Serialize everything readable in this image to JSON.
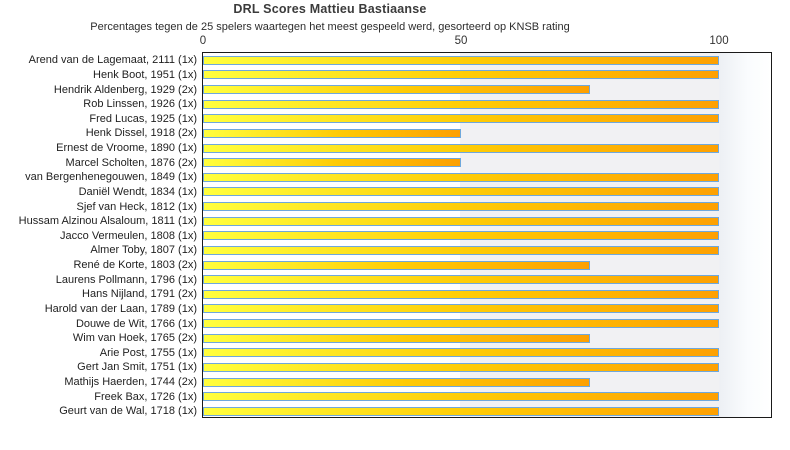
{
  "chart_data": {
    "type": "bar",
    "orientation": "horizontal",
    "title": "DRL Scores Mattieu Bastiaanse",
    "subtitle": "Percentages tegen de 25 spelers waartegen het meest gespeeld werd, gesorteerd op KNSB rating",
    "x_axis": {
      "position": "top",
      "ticks": [
        0,
        50,
        100
      ],
      "range": [
        0,
        110
      ],
      "grid_band": "alternating 50-unit bands"
    },
    "categories": [
      "Arend van de Lagemaat, 2111 (1x)",
      "Henk Boot, 1951 (1x)",
      "Hendrik Aldenberg, 1929 (2x)",
      "Rob Linssen, 1926 (1x)",
      "Fred Lucas, 1925 (1x)",
      "Henk Dissel, 1918 (2x)",
      "Ernest de Vroome, 1890 (1x)",
      "Marcel Scholten, 1876 (2x)",
      "van Bergenhenegouwen, 1849 (1x)",
      "Daniël Wendt, 1834 (1x)",
      "Sjef van Heck, 1812 (1x)",
      "Hussam Alzinou Alsaloum, 1811 (1x)",
      "Jacco Vermeulen, 1808 (1x)",
      "Almer Toby, 1807 (1x)",
      "René de Korte, 1803 (2x)",
      "Laurens Pollmann, 1796 (1x)",
      "Hans Nijland, 1791 (2x)",
      "Harold van der Laan, 1789 (1x)",
      "Douwe de Wit, 1766 (1x)",
      "Wim van Hoek, 1765 (2x)",
      "Arie Post, 1755 (1x)",
      "Gert Jan Smit, 1751 (1x)",
      "Mathijs Haerden, 1744 (2x)",
      "Freek Bax, 1726 (1x)",
      "Geurt van de Wal, 1718 (1x)"
    ],
    "values": [
      100,
      100,
      75,
      100,
      100,
      50,
      100,
      50,
      100,
      100,
      100,
      100,
      100,
      100,
      75,
      100,
      100,
      100,
      100,
      75,
      100,
      100,
      75,
      100,
      100
    ],
    "colors": {
      "bar_gradient_start": "#ffff3d",
      "bar_gradient_mid": "#fecb05",
      "bar_gradient_end": "#fda002",
      "bar_border": "#6fa8dc",
      "band_low": "#ffffff",
      "band_high": "#f1f1f3",
      "plot_border": "#1a1a1a",
      "text": "#1f1f1f"
    }
  }
}
